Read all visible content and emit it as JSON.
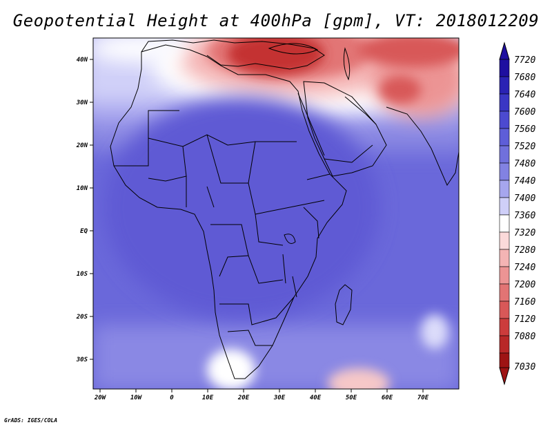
{
  "title": "Geopotential Height at 400hPa [gpm], VT: 2018012209",
  "credit": "GrADS: IGES/COLA",
  "lon_ticks": [
    "20W",
    "10W",
    "0",
    "10E",
    "20E",
    "30E",
    "40E",
    "50E",
    "60E",
    "70E"
  ],
  "lat_ticks": [
    "40N",
    "30N",
    "20N",
    "10N",
    "EQ",
    "10S",
    "20S",
    "30S"
  ],
  "colorbar": {
    "labels": [
      "7720",
      "7680",
      "7640",
      "7600",
      "7560",
      "7520",
      "7480",
      "7440",
      "7400",
      "7360",
      "7320",
      "7280",
      "7240",
      "7200",
      "7160",
      "7120",
      "7080",
      "7030"
    ],
    "colors": [
      "#1e0fa0",
      "#2a22b4",
      "#3a36c4",
      "#4c4ad0",
      "#5e5ed8",
      "#7070dc",
      "#8282e2",
      "#a6a6ee",
      "#cfcff8",
      "#ffffff",
      "#fbdada",
      "#f4b4b4",
      "#ec9494",
      "#e27474",
      "#d85858",
      "#cc3c3c",
      "#b82828",
      "#9e1414"
    ]
  },
  "map": {
    "ocean_fill": "#6e6cdc",
    "land_fill": "#6260d8"
  }
}
